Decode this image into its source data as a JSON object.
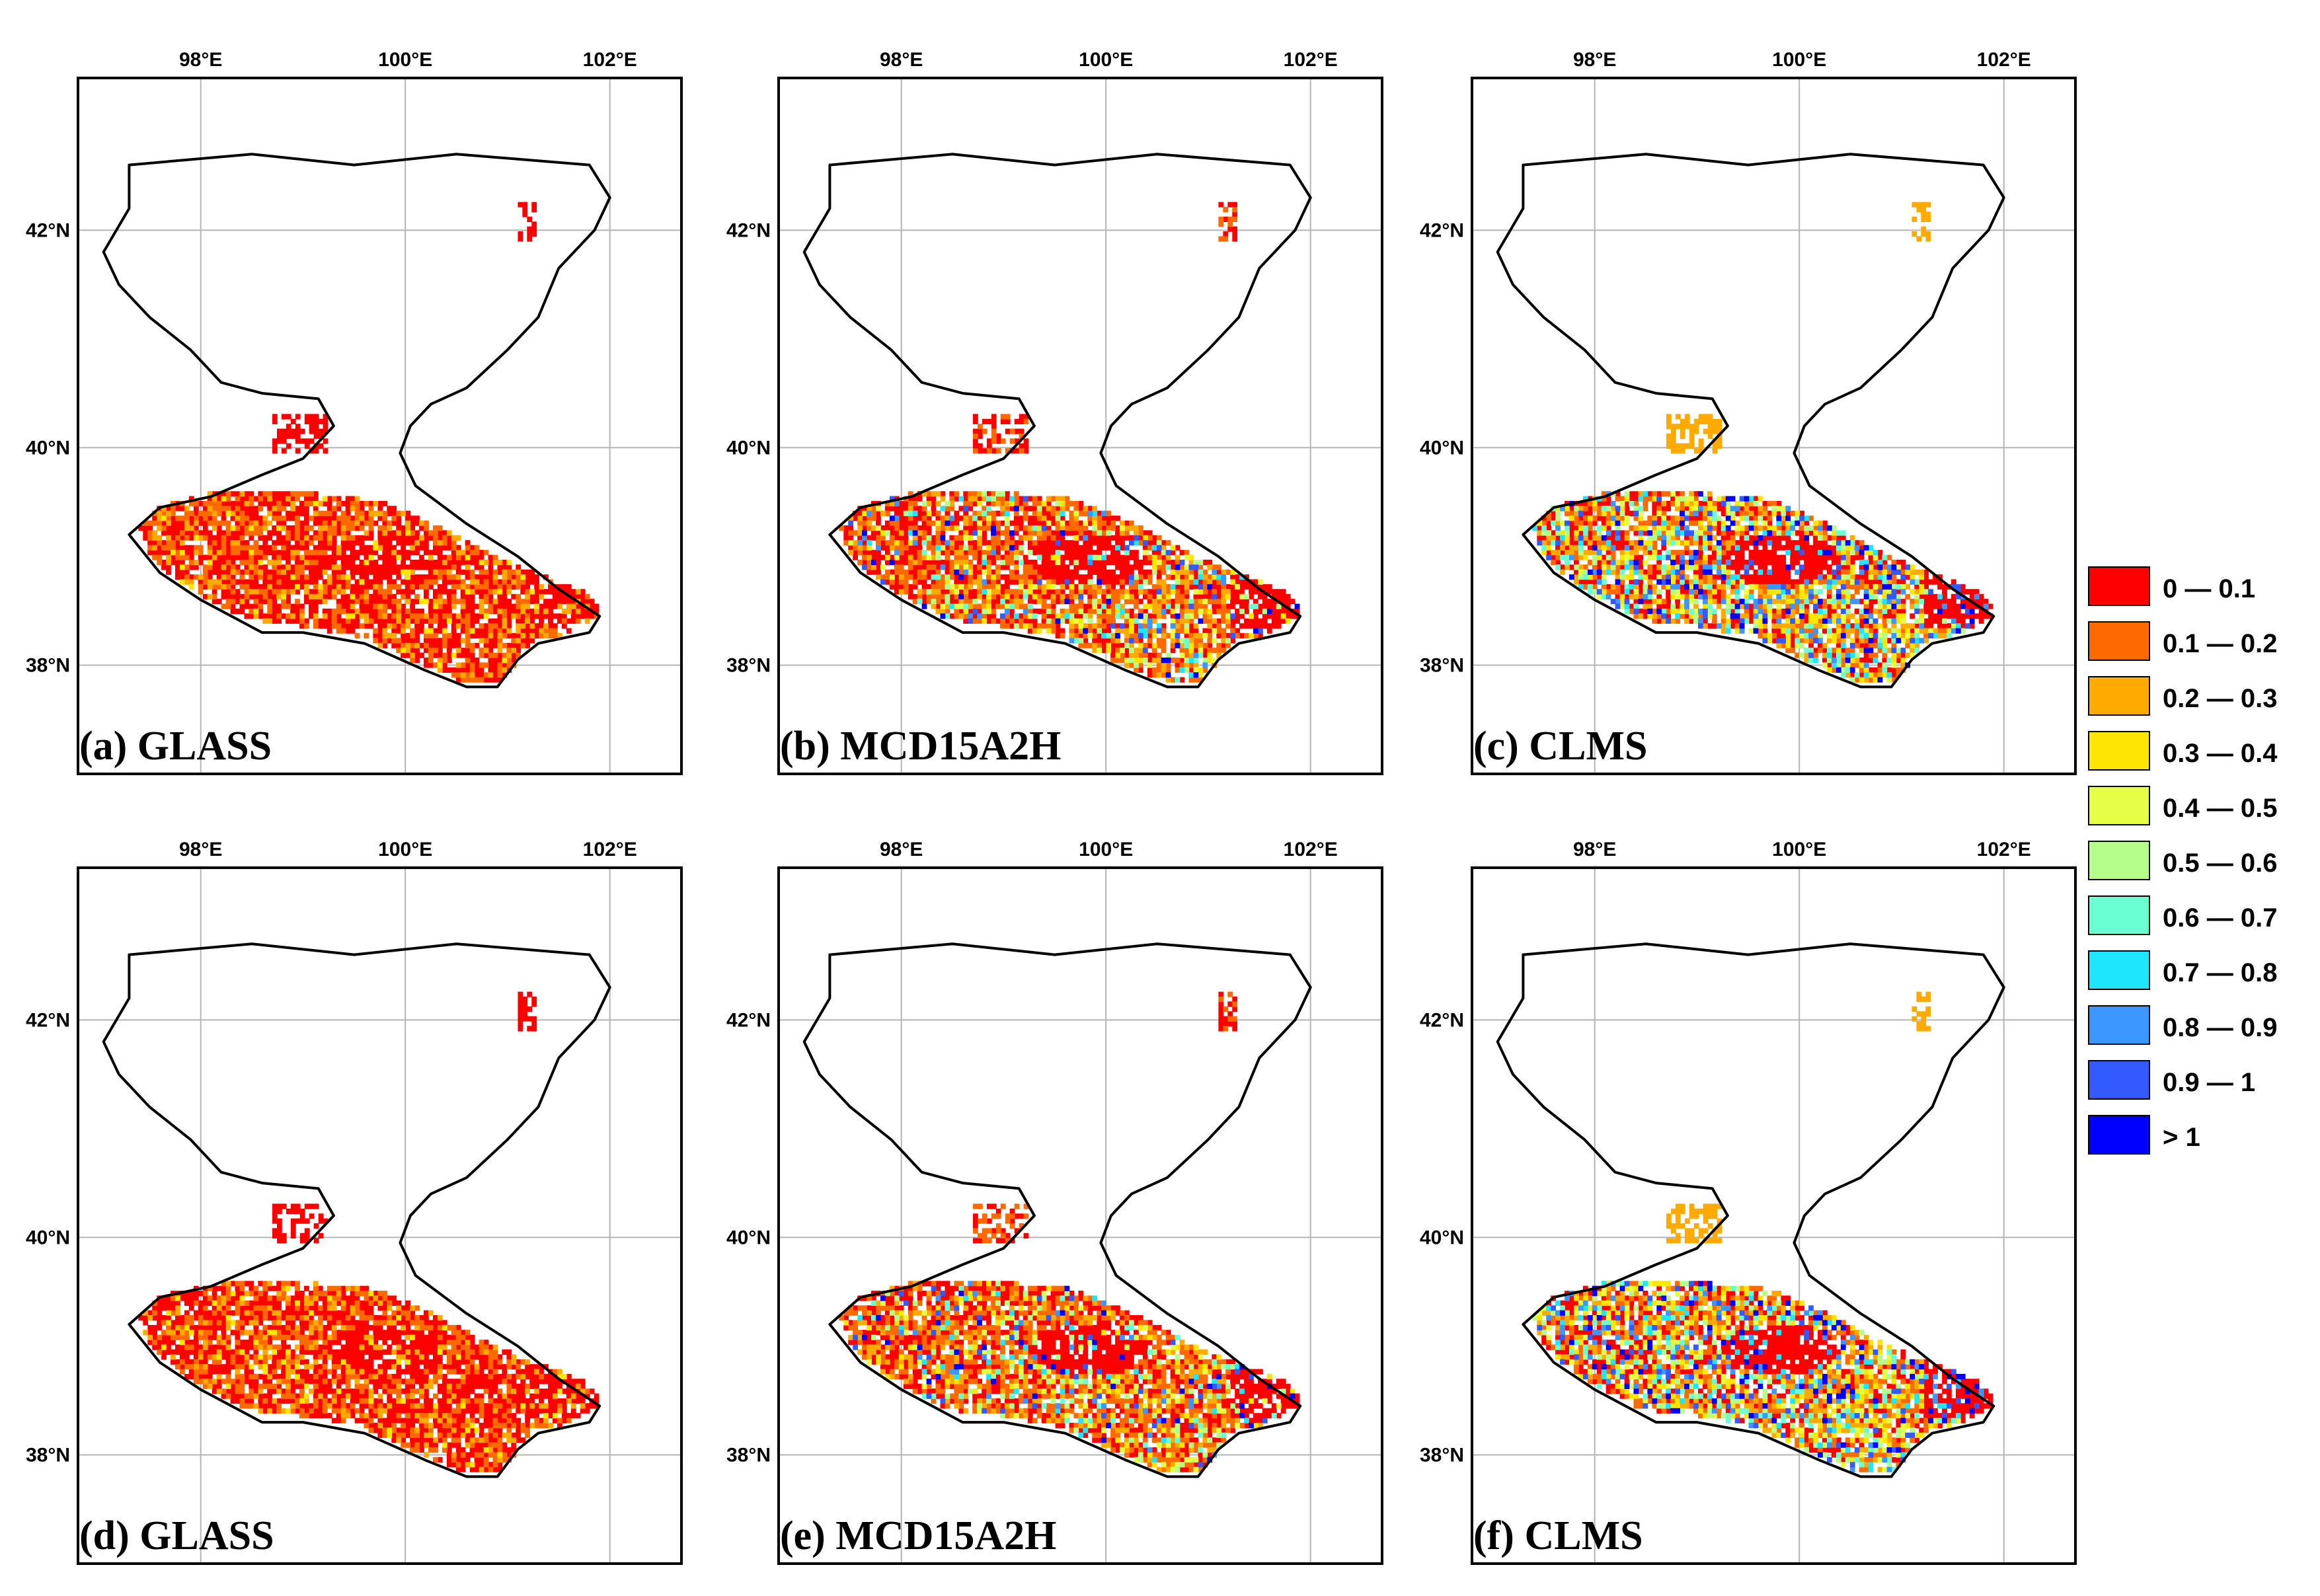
{
  "figure": {
    "panels": [
      {
        "id": "a",
        "label": "(a) GLASS",
        "variant": "glass"
      },
      {
        "id": "b",
        "label": "(b) MCD15A2H",
        "variant": "mcd"
      },
      {
        "id": "c",
        "label": "(c) CLMS",
        "variant": "clms"
      },
      {
        "id": "d",
        "label": "(d) GLASS",
        "variant": "glass"
      },
      {
        "id": "e",
        "label": "(e) MCD15A2H",
        "variant": "mcd"
      },
      {
        "id": "f",
        "label": "(f) CLMS",
        "variant": "clms"
      }
    ],
    "lon_ticks": [
      {
        "value": 98,
        "label": "98°E"
      },
      {
        "value": 100,
        "label": "100°E"
      },
      {
        "value": 102,
        "label": "102°E"
      }
    ],
    "lat_ticks": [
      {
        "value": 42,
        "label": "42°N"
      },
      {
        "value": 40,
        "label": "40°N"
      },
      {
        "value": 38,
        "label": "38°N"
      }
    ],
    "map_extent": {
      "lon": [
        96.8,
        102.7
      ],
      "lat": [
        37.0,
        43.4
      ]
    }
  },
  "legend": {
    "items": [
      {
        "label": "0 — 0.1",
        "color": "#ff0000"
      },
      {
        "label": "0.1 — 0.2",
        "color": "#ff6a00"
      },
      {
        "label": "0.2 — 0.3",
        "color": "#ffaa00"
      },
      {
        "label": "0.3 — 0.4",
        "color": "#ffe600"
      },
      {
        "label": "0.4 — 0.5",
        "color": "#e6ff46"
      },
      {
        "label": "0.5 — 0.6",
        "color": "#b4ff8c"
      },
      {
        "label": "0.6 — 0.7",
        "color": "#6affd2"
      },
      {
        "label": "0.7 — 0.8",
        "color": "#1ee6ff"
      },
      {
        "label": "0.8 — 0.9",
        "color": "#3c96ff"
      },
      {
        "label": "0.9 — 1",
        "color": "#325aff"
      },
      {
        "label": "> 1",
        "color": "#0000ff"
      }
    ]
  },
  "colors": {
    "frame": "#000000",
    "grid": "#b4b4b4",
    "outline": "#000000"
  }
}
